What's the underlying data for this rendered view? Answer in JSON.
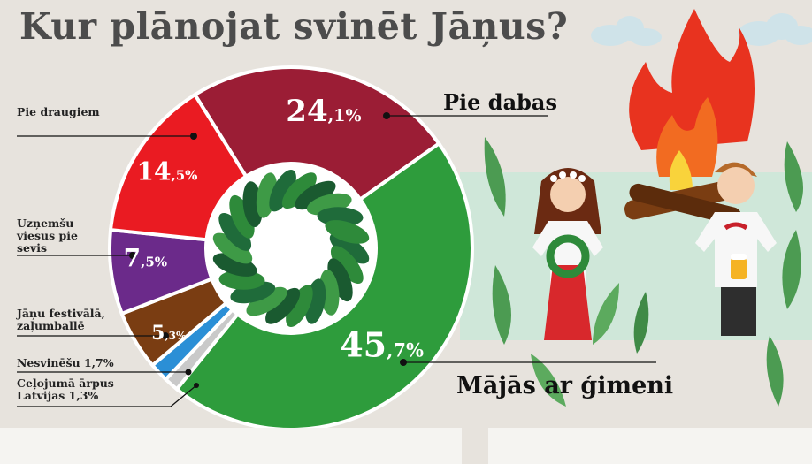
{
  "title": "Kur plānojat svinēt Jāņus?",
  "colors": {
    "background": "#e7e3dd",
    "title": "#4c4c4c",
    "fire": "#e8331f"
  },
  "chart_data": {
    "type": "pie",
    "variant": "donut",
    "title": "Kur plānojat svinēt Jāņus?",
    "unit": "%",
    "slices": [
      {
        "label": "Pie dabas",
        "value": 24.1,
        "text_int": "24",
        "text_dec": ",1%",
        "color": "#9b1d35"
      },
      {
        "label": "Mājās ar ģimeni",
        "value": 45.7,
        "text_int": "45",
        "text_dec": ",7%",
        "color": "#2e9c3c"
      },
      {
        "label": "Ceļojumā ārpus Latvijas 1,3%",
        "value": 1.3,
        "text_int": "",
        "text_dec": "",
        "color": "#c9c9c9"
      },
      {
        "label": "Nesvinēšu 1,7%",
        "value": 1.7,
        "text_int": "",
        "text_dec": "",
        "color": "#2b8fd6"
      },
      {
        "label": "Jāņu festivālā, zaļumballē",
        "value": 5.3,
        "text_int": "5",
        "text_dec": ",3%",
        "color": "#7a3d12"
      },
      {
        "label": "Uzņemšu viesus pie sevis",
        "value": 7.5,
        "text_int": "7",
        "text_dec": ",5%",
        "color": "#6b2a8a"
      },
      {
        "label": "Pie draugiem",
        "value": 14.5,
        "text_int": "14",
        "text_dec": ",5%",
        "color": "#ea1b22"
      }
    ]
  }
}
